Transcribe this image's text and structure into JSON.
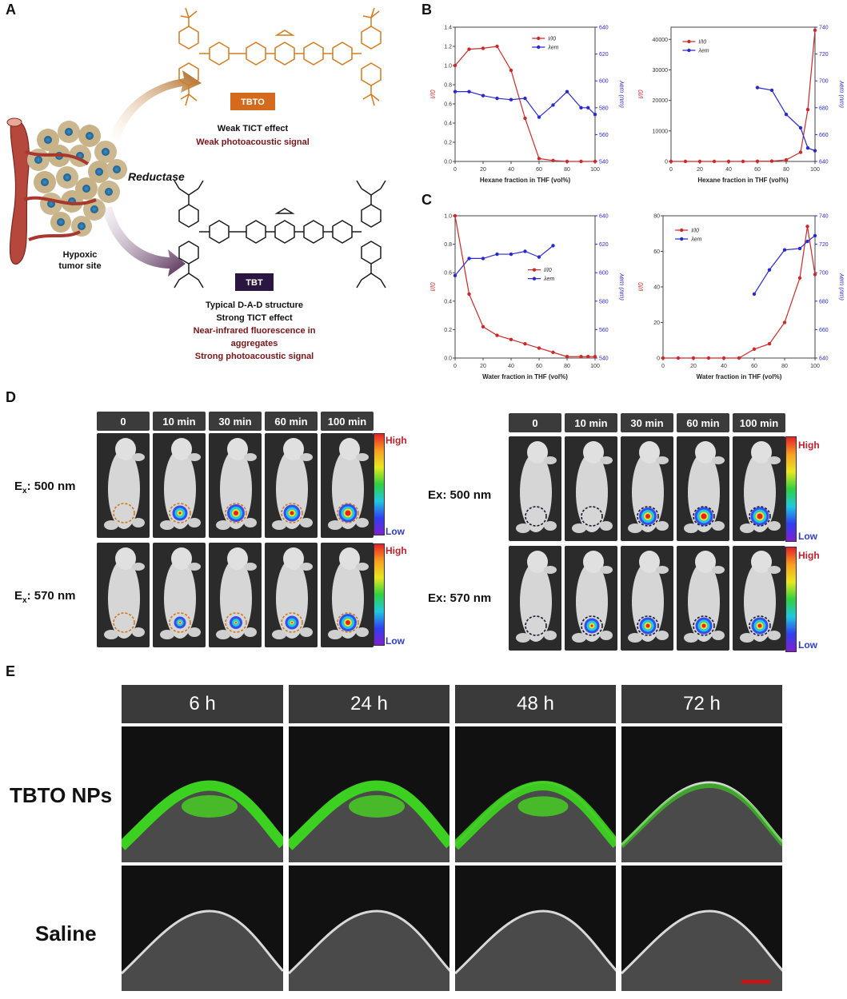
{
  "panels": {
    "a": {
      "letter": "A",
      "reductase": "Reductase",
      "tumor_label_1": "Hypoxic",
      "tumor_label_2": "tumor site",
      "tbto": {
        "badge": "TBTO",
        "line1": "Weak TICT effect",
        "line2": "Weak photoacoustic signal"
      },
      "tbt": {
        "badge": "TBT",
        "line1": "Typical D-A-D structure",
        "line2": "Strong TICT effect",
        "line3": "Near-infrared fluorescence in",
        "line4": "aggregates",
        "line5": "Strong photoacoustic signal"
      },
      "colors": {
        "tbto": "#d47a1c",
        "tbt": "#1a1a1a",
        "caption_dark": "#7a1417",
        "arrow_top": "#b56a1e",
        "arrow_bottom": "#4e2550"
      }
    },
    "b": {
      "letter": "B"
    },
    "c": {
      "letter": "C"
    },
    "d": {
      "letter": "D",
      "left": {
        "times": [
          "0",
          "10 min",
          "30 min",
          "60 min",
          "100 min"
        ],
        "row1": "500 nm",
        "row2": "570 nm",
        "ex_prefix": "E",
        "ex_sub": "x",
        "circle_color": "#d07a1c"
      },
      "right": {
        "times": [
          "0",
          "10 min",
          "30 min",
          "60 min",
          "100 min"
        ],
        "row1": "Ex: 500 nm",
        "row2": "Ex: 570 nm",
        "circle_color": "#1a1a2e"
      },
      "high": "High",
      "low": "Low"
    },
    "e": {
      "letter": "E",
      "times": [
        "6 h",
        "24 h",
        "48 h",
        "72 h"
      ],
      "row1": "TBTO NPs",
      "row2": "Saline"
    }
  },
  "chart_data": [
    {
      "type": "line",
      "panel": "B-left",
      "xlabel": "Hexane fraction in THF (vol%)",
      "xlim": [
        0,
        100
      ],
      "x_ticks": [
        0,
        20,
        40,
        60,
        80,
        100
      ],
      "ylim": [
        0,
        1.4
      ],
      "y_ticks": [
        0.0,
        0.2,
        0.4,
        0.6,
        0.8,
        1.0,
        1.2,
        1.4
      ],
      "ylabel": "I/I0",
      "y2lim": [
        540,
        640
      ],
      "y2_ticks": [
        540,
        560,
        580,
        600,
        620,
        640
      ],
      "y2label": "λem (nm)",
      "legend_position": "top-right",
      "series": [
        {
          "name": "I/I0",
          "color": "#cc2a2a",
          "axis": "left",
          "x": [
            0,
            10,
            20,
            30,
            40,
            50,
            60,
            70,
            80,
            90,
            100
          ],
          "y": [
            1.0,
            1.17,
            1.18,
            1.2,
            0.95,
            0.45,
            0.03,
            0.01,
            0.0,
            0.0,
            0.0
          ]
        },
        {
          "name": "λem",
          "color": "#2a2acc",
          "axis": "right",
          "x": [
            0,
            10,
            20,
            30,
            40,
            50,
            60,
            70,
            80,
            90,
            95,
            100
          ],
          "y": [
            592,
            592,
            589,
            587,
            586,
            587,
            573,
            582,
            592,
            580,
            580,
            575
          ]
        }
      ]
    },
    {
      "type": "line",
      "panel": "B-right",
      "xlabel": "Hexane fraction in THF (vol%)",
      "xlim": [
        0,
        100
      ],
      "x_ticks": [
        0,
        20,
        40,
        60,
        80,
        100
      ],
      "ylim": [
        0,
        44000
      ],
      "y_ticks": [
        0,
        10000,
        20000,
        30000,
        40000
      ],
      "ylabel": "I/I0",
      "y2lim": [
        640,
        740
      ],
      "y2_ticks": [
        640,
        660,
        680,
        700,
        720,
        740
      ],
      "y2label": "λem (nm)",
      "legend_position": "top-left",
      "series": [
        {
          "name": "I/I0",
          "color": "#cc2a2a",
          "axis": "left",
          "x": [
            0,
            10,
            20,
            30,
            40,
            50,
            60,
            70,
            80,
            90,
            95,
            100
          ],
          "y": [
            0,
            0,
            0,
            0,
            0,
            0,
            50,
            100,
            500,
            3000,
            17000,
            43000
          ]
        },
        {
          "name": "λem",
          "color": "#2a2acc",
          "axis": "right",
          "x": [
            60,
            70,
            80,
            90,
            95,
            100
          ],
          "y": [
            695,
            693,
            675,
            665,
            650,
            648
          ]
        }
      ]
    },
    {
      "type": "line",
      "panel": "C-left",
      "xlabel": "Water fraction in THF (vol%)",
      "xlim": [
        0,
        100
      ],
      "x_ticks": [
        0,
        20,
        40,
        60,
        80,
        100
      ],
      "ylim": [
        0,
        1.0
      ],
      "y_ticks": [
        0.0,
        0.2,
        0.4,
        0.6,
        0.8,
        1.0
      ],
      "ylabel": "I/I0",
      "y2lim": [
        540,
        640
      ],
      "y2_ticks": [
        540,
        560,
        580,
        600,
        620,
        640
      ],
      "y2label": "λem (nm)",
      "legend_position": "center-right",
      "series": [
        {
          "name": "I/I0",
          "color": "#cc2a2a",
          "axis": "left",
          "x": [
            0,
            10,
            20,
            30,
            40,
            50,
            60,
            70,
            80,
            90,
            95,
            100
          ],
          "y": [
            1.0,
            0.45,
            0.22,
            0.16,
            0.13,
            0.1,
            0.07,
            0.04,
            0.01,
            0.01,
            0.01,
            0.01
          ]
        },
        {
          "name": "λem",
          "color": "#2a2acc",
          "axis": "right",
          "x": [
            0,
            10,
            20,
            30,
            40,
            50,
            60,
            70
          ],
          "y": [
            598,
            610,
            610,
            613,
            613,
            615,
            611,
            619
          ]
        }
      ]
    },
    {
      "type": "line",
      "panel": "C-right",
      "xlabel": "Water fraction in THF (vol%)",
      "xlim": [
        0,
        100
      ],
      "x_ticks": [
        0,
        20,
        40,
        60,
        80,
        100
      ],
      "ylim": [
        0,
        80
      ],
      "y_ticks": [
        0,
        20,
        40,
        60,
        80
      ],
      "ylabel": "I/I0",
      "y2lim": [
        640,
        740
      ],
      "y2_ticks": [
        640,
        660,
        680,
        700,
        720,
        740
      ],
      "y2label": "λem (nm)",
      "legend_position": "top-left",
      "series": [
        {
          "name": "I/I0",
          "color": "#cc2a2a",
          "axis": "left",
          "x": [
            0,
            10,
            20,
            30,
            40,
            50,
            60,
            70,
            80,
            90,
            95,
            100
          ],
          "y": [
            0,
            0,
            0,
            0,
            0,
            0,
            5,
            8,
            20,
            45,
            74,
            47
          ]
        },
        {
          "name": "λem",
          "color": "#2a2acc",
          "axis": "right",
          "x": [
            60,
            70,
            80,
            90,
            95,
            100
          ],
          "y": [
            685,
            702,
            716,
            717,
            722,
            726
          ]
        }
      ]
    }
  ]
}
